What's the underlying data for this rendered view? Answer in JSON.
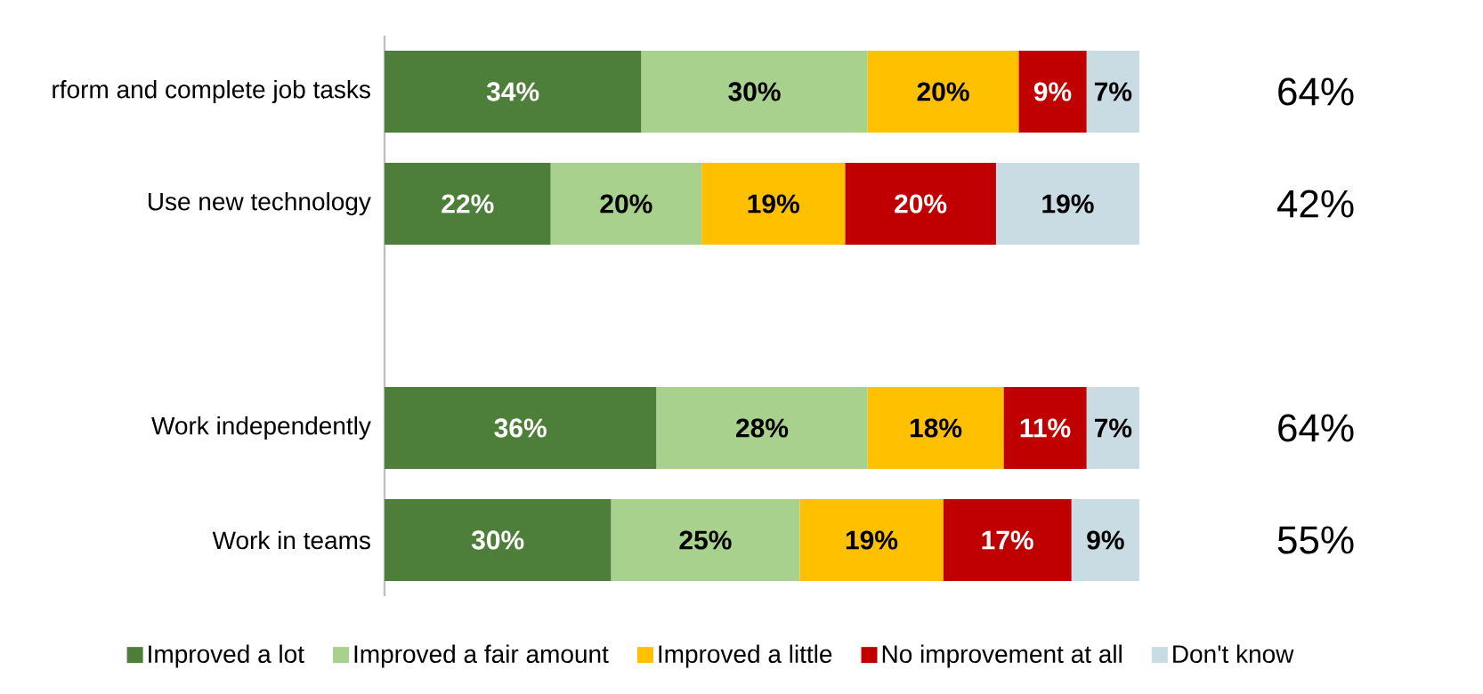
{
  "chart_data": {
    "type": "bar",
    "orientation": "horizontal",
    "stacked": true,
    "categories": [
      "rform and complete job tasks",
      "Use new technology",
      null,
      "Work independently",
      "Work in teams"
    ],
    "series": [
      {
        "name": "Improved a lot",
        "color": "#4e7f3a",
        "values": [
          34,
          22,
          null,
          36,
          30
        ],
        "value_labels": [
          "34%",
          "22%",
          null,
          "36%",
          "30%"
        ]
      },
      {
        "name": "Improved a fair amount",
        "color": "#a9d18e",
        "values": [
          30,
          20,
          null,
          28,
          25
        ],
        "value_labels": [
          "30%",
          "20%",
          null,
          "28%",
          "25%"
        ]
      },
      {
        "name": "Improved a little",
        "color": "#ffc000",
        "values": [
          20,
          19,
          null,
          18,
          19
        ],
        "value_labels": [
          "20%",
          "19%",
          null,
          "18%",
          "19%"
        ]
      },
      {
        "name": "No improvement at all",
        "color": "#c00000",
        "values": [
          9,
          20,
          null,
          11,
          17
        ],
        "value_labels": [
          "9%",
          "20%",
          null,
          "11%",
          "17%"
        ]
      },
      {
        "name": "Don't know",
        "color": "#c9dbe3",
        "values": [
          7,
          19,
          null,
          7,
          9
        ],
        "value_labels": [
          "7%",
          "19%",
          null,
          "7%",
          "9%"
        ]
      }
    ],
    "annotations": [
      "64%",
      "42%",
      "64%",
      "55%"
    ],
    "legend": "bottom",
    "tick_labels": "y"
  }
}
